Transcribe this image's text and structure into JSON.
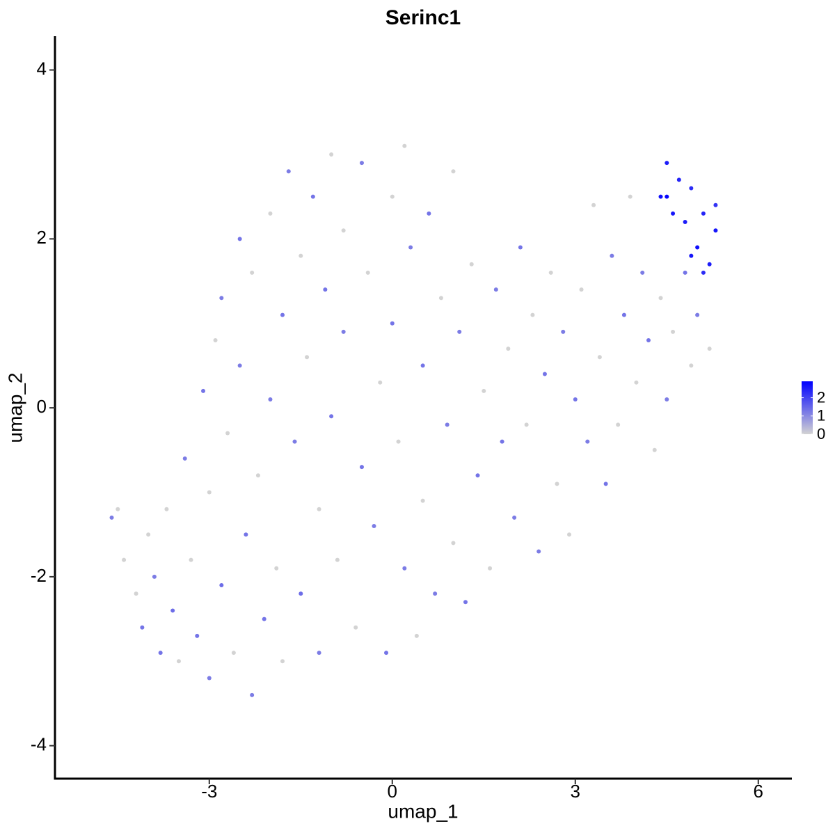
{
  "chart_data": {
    "type": "scatter",
    "title": "Serinc1",
    "x_label": "umap_1",
    "y_label": "umap_2",
    "xlim": [
      -5.53,
      6.55
    ],
    "ylim": [
      -4.39,
      4.4
    ],
    "xticks": [
      -3,
      0,
      3,
      6
    ],
    "yticks": [
      -4,
      -2,
      0,
      2,
      4
    ],
    "color_scale": {
      "lim": [
        0,
        2.9
      ],
      "ticks": [
        0,
        1,
        2
      ],
      "low": "#d3d3d3",
      "high": "#0000ff"
    },
    "x": [
      -4.6,
      -4.5,
      -4.4,
      -4.2,
      -4.1,
      -4.0,
      -3.9,
      -3.8,
      -3.7,
      -3.6,
      -3.5,
      -3.4,
      -3.3,
      -3.2,
      -3.1,
      -3.0,
      -3.0,
      -2.9,
      -2.8,
      -2.8,
      -2.7,
      -2.6,
      -2.5,
      -2.5,
      -2.4,
      -2.3,
      -2.3,
      -2.2,
      -2.1,
      -2.0,
      -2.0,
      -1.9,
      -1.8,
      -1.8,
      -1.7,
      -1.6,
      -1.5,
      -1.5,
      -1.4,
      -1.3,
      -1.2,
      -1.2,
      -1.1,
      -1.0,
      -1.0,
      -0.9,
      -0.8,
      -0.8,
      -0.6,
      -0.5,
      -0.5,
      -0.4,
      -0.3,
      -0.2,
      -0.1,
      0.0,
      0.0,
      0.1,
      0.2,
      0.2,
      0.3,
      0.4,
      0.5,
      0.5,
      0.6,
      0.7,
      0.8,
      0.9,
      1.0,
      1.0,
      1.1,
      1.2,
      1.3,
      1.4,
      1.5,
      1.6,
      1.7,
      1.8,
      1.9,
      2.0,
      2.1,
      2.2,
      2.3,
      2.4,
      2.5,
      2.6,
      2.7,
      2.8,
      2.9,
      3.0,
      3.1,
      3.2,
      3.3,
      3.4,
      3.5,
      3.6,
      3.7,
      3.8,
      3.9,
      4.0,
      4.1,
      4.2,
      4.3,
      4.4,
      4.5,
      4.6,
      4.8,
      4.9,
      5.0,
      5.2,
      4.4,
      4.5,
      4.6,
      4.7,
      4.8,
      4.9,
      5.0,
      5.1,
      5.2,
      5.3,
      5.3,
      4.5,
      4.9,
      5.1
    ],
    "values": [
      -1.3,
      -1.2,
      -1.8,
      -2.2,
      -2.6,
      -1.5,
      -2.0,
      -2.9,
      -1.2,
      -2.4,
      -3.0,
      -0.6,
      -1.8,
      -2.7,
      0.2,
      -1.0,
      -3.2,
      0.8,
      -2.1,
      1.3,
      -0.3,
      -2.9,
      2.0,
      0.5,
      -1.5,
      -3.4,
      1.6,
      -0.8,
      -2.5,
      0.1,
      2.3,
      -1.9,
      1.1,
      -3.0,
      2.8,
      -0.4,
      1.8,
      -2.2,
      0.6,
      2.5,
      -1.2,
      -2.9,
      1.4,
      3.0,
      -0.1,
      -1.8,
      2.1,
      0.9,
      -2.6,
      2.9,
      -0.7,
      1.6,
      -1.4,
      0.3,
      -2.9,
      2.5,
      1.0,
      -0.4,
      3.1,
      -1.9,
      1.9,
      -2.7,
      0.5,
      -1.1,
      2.3,
      -2.2,
      1.3,
      -0.2,
      2.8,
      -1.6,
      0.9,
      -2.3,
      1.7,
      -0.8,
      0.2,
      -1.9,
      1.4,
      -0.4,
      0.7,
      -1.3,
      1.9,
      -0.2,
      1.1,
      -1.7,
      0.4,
      1.6,
      -0.9,
      0.9,
      -1.5,
      0.1,
      1.4,
      -0.4,
      2.4,
      0.6,
      -0.9,
      1.8,
      -0.2,
      1.1,
      2.5,
      0.3,
      1.6,
      0.8,
      -0.5,
      1.3,
      0.1,
      0.9,
      1.6,
      0.5,
      1.1,
      0.7,
      2.5,
      2.9,
      2.3,
      2.7,
      2.2,
      2.6,
      1.9,
      2.3,
      1.7,
      2.1,
      2.4,
      2.5,
      1.8,
      1.6
    ],
    "expression": [
      1.2,
      0,
      0,
      0,
      1.3,
      0,
      1.2,
      1.3,
      0,
      1.4,
      0,
      1.2,
      0,
      1.3,
      1.3,
      0,
      1.2,
      0,
      1.4,
      1.2,
      0,
      0,
      1.3,
      1.2,
      1.3,
      1.2,
      0,
      0,
      1.3,
      1.2,
      0,
      0,
      1.3,
      0,
      1.2,
      1.2,
      0,
      1.4,
      0,
      1.3,
      0,
      1.2,
      1.3,
      0,
      1.3,
      0,
      0,
      1.2,
      0,
      1.2,
      1.3,
      0,
      1.2,
      0,
      1.3,
      0,
      1.3,
      0,
      0,
      1.2,
      1.2,
      0,
      1.3,
      0,
      1.3,
      1.2,
      0,
      1.2,
      0,
      0,
      1.2,
      1.3,
      0,
      1.3,
      0,
      0,
      1.2,
      1.3,
      0,
      1.2,
      1.3,
      0,
      0,
      1.2,
      1.3,
      0,
      0,
      1.2,
      0,
      1.3,
      0,
      1.2,
      0,
      0,
      1.3,
      1.2,
      0,
      1.3,
      0,
      0,
      1.2,
      1.3,
      0,
      0,
      1.2,
      0,
      1.3,
      0,
      1.2,
      0,
      2.7,
      2.5,
      2.6,
      2.4,
      2.5,
      2.3,
      2.7,
      2.4,
      2.5,
      2.6,
      2.2,
      2.8,
      2.6,
      2.3
    ]
  }
}
